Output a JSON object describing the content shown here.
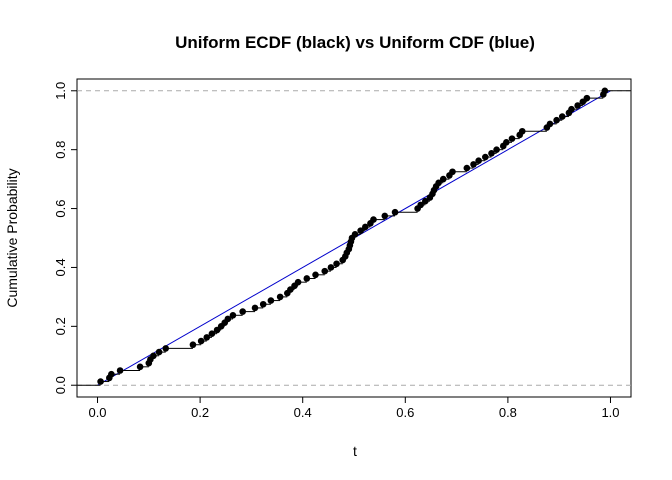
{
  "chart_data": {
    "type": "line",
    "title": "Uniform ECDF (black) vs Uniform CDF (blue)",
    "xlabel": "t",
    "ylabel": "Cumulative Probability",
    "xlim": [
      -0.04,
      1.04
    ],
    "ylim": [
      -0.04,
      1.04
    ],
    "x_ticks": [
      "0.0",
      "0.2",
      "0.4",
      "0.6",
      "0.8",
      "1.0"
    ],
    "y_ticks": [
      "0.0",
      "0.2",
      "0.4",
      "0.6",
      "0.8",
      "1.0"
    ],
    "x_tick_values": [
      0,
      0.2,
      0.4,
      0.6,
      0.8,
      1.0
    ],
    "y_tick_values": [
      0,
      0.2,
      0.4,
      0.6,
      0.8,
      1.0
    ],
    "reference_lines_y": [
      0,
      1
    ],
    "colors": {
      "ecdf": "#000000",
      "cdf": "#0000cc",
      "reference": "#aaaaaa"
    },
    "series": [
      {
        "style": "ecdf-step",
        "x": [
          0.006,
          0.023,
          0.027,
          0.044,
          0.083,
          0.1,
          0.103,
          0.109,
          0.12,
          0.133,
          0.186,
          0.202,
          0.213,
          0.223,
          0.233,
          0.241,
          0.248,
          0.254,
          0.264,
          0.283,
          0.307,
          0.323,
          0.338,
          0.356,
          0.37,
          0.376,
          0.384,
          0.391,
          0.408,
          0.425,
          0.443,
          0.455,
          0.466,
          0.478,
          0.483,
          0.486,
          0.49,
          0.492,
          0.494,
          0.496,
          0.502,
          0.513,
          0.522,
          0.532,
          0.538,
          0.56,
          0.58,
          0.624,
          0.63,
          0.639,
          0.648,
          0.653,
          0.656,
          0.66,
          0.665,
          0.674,
          0.686,
          0.692,
          0.72,
          0.733,
          0.743,
          0.756,
          0.768,
          0.778,
          0.791,
          0.797,
          0.808,
          0.823,
          0.828,
          0.876,
          0.882,
          0.895,
          0.906,
          0.919,
          0.924,
          0.936,
          0.946,
          0.954,
          0.986,
          0.989
        ],
        "y": [
          0.0125,
          0.025,
          0.0375,
          0.05,
          0.0625,
          0.075,
          0.0875,
          0.1,
          0.1125,
          0.125,
          0.1375,
          0.15,
          0.1625,
          0.175,
          0.1875,
          0.2,
          0.2125,
          0.225,
          0.2375,
          0.25,
          0.2625,
          0.275,
          0.2875,
          0.3,
          0.3125,
          0.325,
          0.3375,
          0.35,
          0.3625,
          0.375,
          0.3875,
          0.4,
          0.4125,
          0.425,
          0.4375,
          0.45,
          0.4625,
          0.475,
          0.4875,
          0.5,
          0.5125,
          0.525,
          0.5375,
          0.55,
          0.5625,
          0.575,
          0.5875,
          0.6,
          0.6125,
          0.625,
          0.6375,
          0.65,
          0.6625,
          0.675,
          0.6875,
          0.7,
          0.7125,
          0.725,
          0.7375,
          0.75,
          0.7625,
          0.775,
          0.7875,
          0.8,
          0.8125,
          0.825,
          0.8375,
          0.85,
          0.8625,
          0.875,
          0.8875,
          0.9,
          0.9125,
          0.925,
          0.9375,
          0.95,
          0.9625,
          0.975,
          0.9875,
          1.0
        ]
      },
      {
        "style": "cdf-line",
        "x": [
          0,
          1
        ],
        "y": [
          0,
          1
        ]
      }
    ]
  }
}
